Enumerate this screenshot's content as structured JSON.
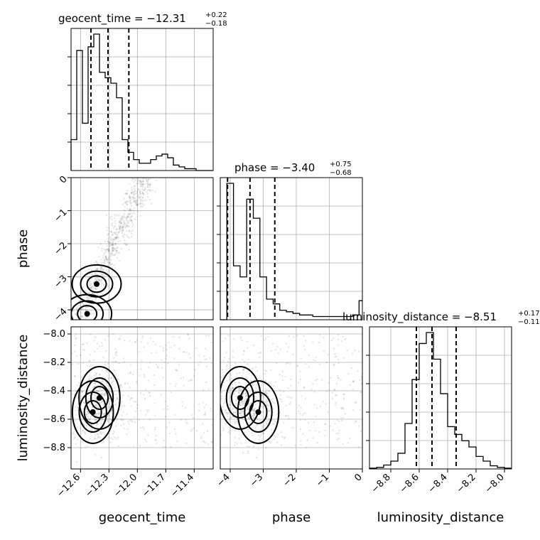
{
  "chart_data": {
    "type": "corner",
    "parameters": [
      "geocent_time",
      "phase",
      "luminosity_distance"
    ],
    "ranges": {
      "geocent_time": [
        -12.7,
        -11.2
      ],
      "phase": [
        -4.3,
        0.0
      ],
      "luminosity_distance": [
        -8.95,
        -7.95
      ]
    },
    "ticks": {
      "geocent_time": [
        "−12.6",
        "−12.3",
        "−12.0",
        "−11.7",
        "−11.4"
      ],
      "geocent_time_values": [
        -12.6,
        -12.3,
        -12.0,
        -11.7,
        -11.4
      ],
      "phase": [
        "−4",
        "−3",
        "−2",
        "−1",
        "0"
      ],
      "phase_values": [
        -4,
        -3,
        -2,
        -1,
        0
      ],
      "luminosity_distance": [
        "−8.8",
        "−8.6",
        "−8.4",
        "−8.2",
        "−8.0"
      ],
      "luminosity_distance_values": [
        -8.8,
        -8.6,
        -8.4,
        -8.2,
        -8.0
      ]
    },
    "marginals": [
      {
        "parameter": "geocent_time",
        "title_main": "geocent_time = −12.31",
        "title_plus": "+0.22",
        "title_minus": "−0.18",
        "median": -12.31,
        "quantiles": [
          -12.49,
          -12.31,
          -12.09
        ],
        "bin_edges": [
          -12.7,
          -12.64,
          -12.58,
          -12.52,
          -12.46,
          -12.4,
          -12.34,
          -12.28,
          -12.22,
          -12.16,
          -12.1,
          -12.04,
          -11.98,
          -11.92,
          -11.86,
          -11.8,
          -11.74,
          -11.68,
          -11.62,
          -11.56,
          -11.5,
          -11.44,
          -11.38,
          -11.32,
          -11.26,
          -11.2
        ],
        "counts": [
          0.17,
          0.66,
          0.26,
          0.68,
          0.75,
          0.54,
          0.51,
          0.48,
          0.4,
          0.17,
          0.1,
          0.06,
          0.04,
          0.04,
          0.06,
          0.08,
          0.09,
          0.07,
          0.03,
          0.02,
          0.01,
          0.01,
          0.0,
          0.0,
          0.0
        ]
      },
      {
        "parameter": "phase",
        "title_main": "phase = −3.40",
        "title_plus": "+0.75",
        "title_minus": "−0.68",
        "median": -3.4,
        "quantiles": [
          -4.08,
          -3.4,
          -2.65
        ],
        "bin_edges": [
          -4.3,
          -4.1,
          -3.9,
          -3.7,
          -3.5,
          -3.3,
          -3.1,
          -2.9,
          -2.7,
          -2.5,
          -2.3,
          -2.1,
          -1.9,
          -1.7,
          -1.5,
          -1.3,
          -1.1,
          -0.9,
          -0.7,
          -0.5,
          -0.3,
          -0.1,
          0.0
        ],
        "counts": [
          0.0,
          0.86,
          0.34,
          0.27,
          0.76,
          0.64,
          0.27,
          0.13,
          0.1,
          0.06,
          0.05,
          0.04,
          0.03,
          0.03,
          0.02,
          0.02,
          0.02,
          0.02,
          0.02,
          0.02,
          0.03,
          0.12
        ]
      },
      {
        "parameter": "luminosity_distance",
        "title_main": "luminosity_distance = −8.51",
        "title_plus": "+0.17",
        "title_minus": "−0.11",
        "median": -8.51,
        "quantiles": [
          -8.62,
          -8.51,
          -8.34
        ],
        "bin_edges": [
          -8.95,
          -8.9,
          -8.85,
          -8.8,
          -8.75,
          -8.7,
          -8.65,
          -8.6,
          -8.55,
          -8.5,
          -8.45,
          -8.4,
          -8.35,
          -8.3,
          -8.25,
          -8.2,
          -8.15,
          -8.1,
          -8.05,
          -8.0,
          -7.95
        ],
        "counts": [
          0.005,
          0.01,
          0.025,
          0.05,
          0.1,
          0.29,
          0.57,
          0.8,
          0.87,
          0.7,
          0.48,
          0.27,
          0.22,
          0.18,
          0.14,
          0.08,
          0.05,
          0.02,
          0.01,
          0.005
        ]
      }
    ],
    "panel_2d": [
      {
        "x": "geocent_time",
        "y": "phase",
        "peaks": [
          [
            -12.53,
            -4.12
          ],
          [
            -12.43,
            -3.22
          ]
        ]
      },
      {
        "x": "geocent_time",
        "y": "luminosity_distance",
        "peaks": [
          [
            -12.47,
            -8.55
          ],
          [
            -12.4,
            -8.45
          ]
        ]
      },
      {
        "x": "phase",
        "y": "luminosity_distance",
        "peaks": [
          [
            -3.15,
            -8.55
          ],
          [
            -3.7,
            -8.45
          ]
        ]
      }
    ],
    "grid": true
  }
}
